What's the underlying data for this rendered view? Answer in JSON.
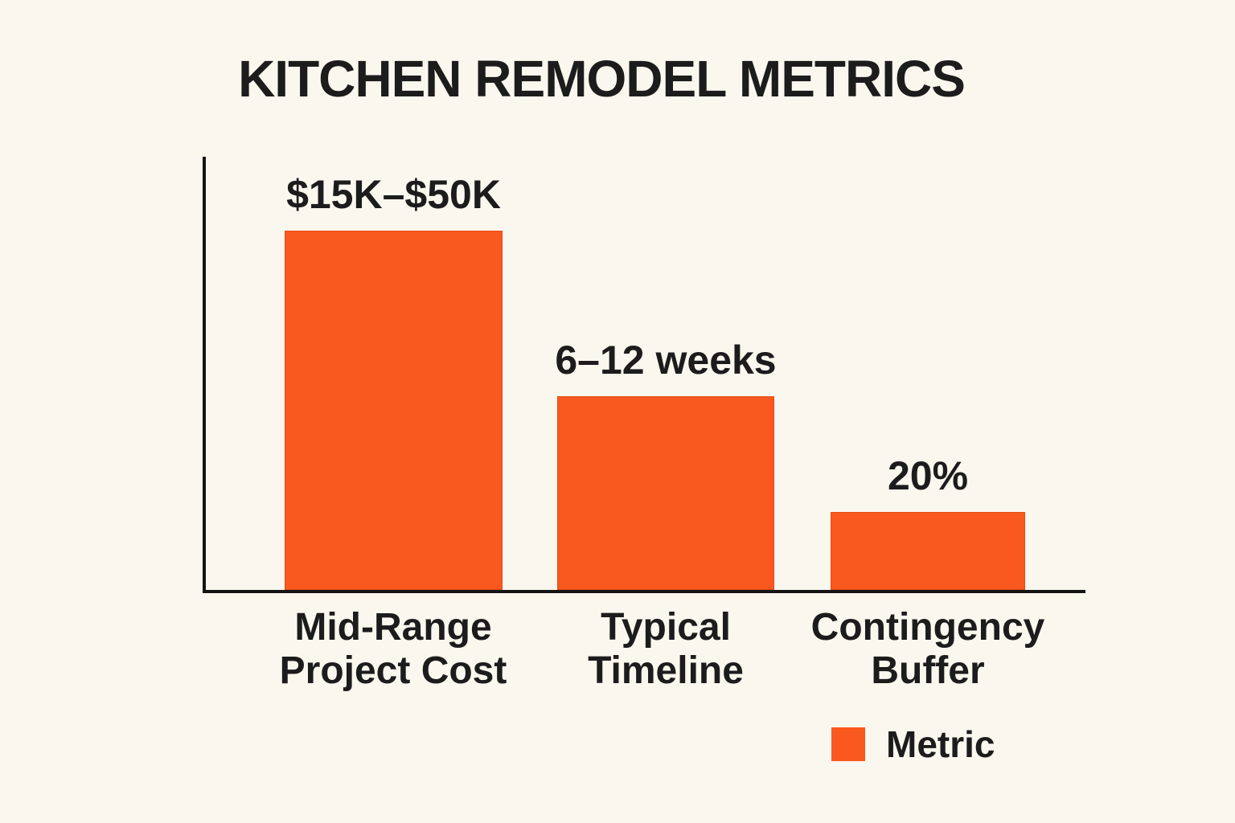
{
  "chart_data": {
    "type": "bar",
    "title": "KITCHEN REMODEL METRICS",
    "categories": [
      "Mid-Range Project Cost",
      "Typical Timeline",
      "Contingency Buffer"
    ],
    "series": [
      {
        "name": "Metric",
        "value_labels": [
          "$15K–$50K",
          "6–12 weeks",
          "20%"
        ]
      }
    ],
    "bars": [
      {
        "value_label": "$15K–$50K",
        "category_line1": "Mid-Range",
        "category_line2": "Project Cost",
        "height_pct": 82.9
      },
      {
        "value_label": "6–12 weeks",
        "category_line1": "Typical",
        "category_line2": "Timeline",
        "height_pct": 44.7
      },
      {
        "value_label": "20%",
        "category_line1": "Contingency",
        "category_line2": "Buffer",
        "height_pct": 18.0
      }
    ],
    "legend": {
      "label": "Metric",
      "position": "bottom-right"
    },
    "colors": {
      "bar": "#F9591E",
      "axis": "#141414",
      "background": "#FAF7EE",
      "text": "#1C1C1C"
    },
    "grid": false,
    "xlabel": "",
    "ylabel": ""
  }
}
